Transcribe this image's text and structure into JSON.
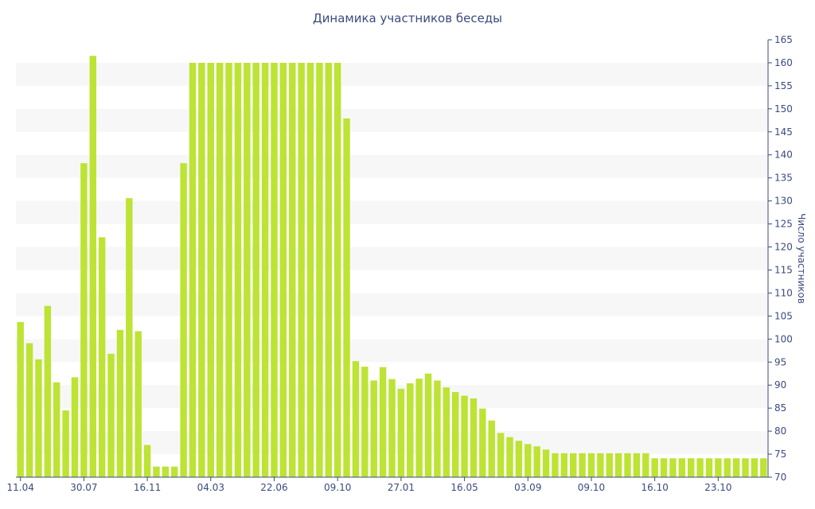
{
  "chart_data": {
    "type": "bar",
    "title": "Динамика участников беседы",
    "ylabel": "Число участников",
    "xlabel": "",
    "ylim": [
      70,
      165
    ],
    "y_ticks": [
      70,
      75,
      80,
      85,
      90,
      95,
      100,
      105,
      110,
      115,
      120,
      125,
      130,
      135,
      140,
      145,
      150,
      155,
      160,
      165
    ],
    "y_axis_side": "right",
    "grid": "horizontal alternating bands",
    "legend": "none",
    "bar_color": "#bde334",
    "x_tick_labels": [
      {
        "label": "11.04",
        "index": 0
      },
      {
        "label": "30.07",
        "index": 7
      },
      {
        "label": "16.11",
        "index": 14
      },
      {
        "label": "04.03",
        "index": 21
      },
      {
        "label": "22.06",
        "index": 28
      },
      {
        "label": "09.10",
        "index": 35
      },
      {
        "label": "27.01",
        "index": 42
      },
      {
        "label": "16.05",
        "index": 49
      },
      {
        "label": "03.09",
        "index": 56
      },
      {
        "label": "09.10",
        "index": 63
      },
      {
        "label": "16.10",
        "index": 70
      },
      {
        "label": "23.10",
        "index": 77
      }
    ],
    "values": [
      103.7,
      99.1,
      95.6,
      107.2,
      90.6,
      84.5,
      91.7,
      138.2,
      161.5,
      122.1,
      96.8,
      102.0,
      130.6,
      101.7,
      77.0,
      72.3,
      72.3,
      72.3,
      138.2,
      160.0,
      160.0,
      160.0,
      160.0,
      160.0,
      160.0,
      160.0,
      160.0,
      160.0,
      160.0,
      160.0,
      160.0,
      160.0,
      160.0,
      160.0,
      160.0,
      160.0,
      147.9,
      95.2,
      94.0,
      91.0,
      93.9,
      91.3,
      89.2,
      90.4,
      91.4,
      92.5,
      91.0,
      89.5,
      88.5,
      87.7,
      87.1,
      84.9,
      82.3,
      79.6,
      78.7,
      77.9,
      77.2,
      76.7,
      76.0,
      75.2,
      75.2,
      75.2,
      75.2,
      75.2,
      75.2,
      75.2,
      75.2,
      75.2,
      75.2,
      75.2,
      74.1,
      74.1,
      74.1,
      74.1,
      74.1,
      74.1,
      74.1,
      74.1,
      74.1,
      74.1,
      74.1,
      74.1,
      74.1
    ]
  }
}
